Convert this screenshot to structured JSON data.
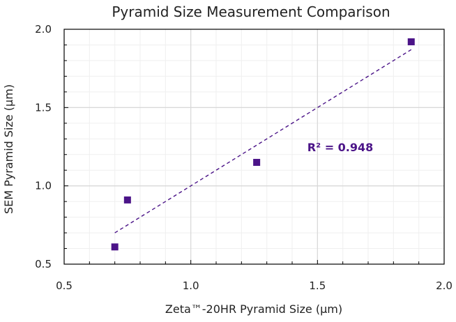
{
  "chart_data": {
    "type": "scatter",
    "title": "Pyramid Size Measurement Comparison",
    "xlabel": "Zeta™-20HR Pyramid Size (µm)",
    "ylabel": "SEM Pyramid Size (µm)",
    "xlim": [
      0.5,
      2.0
    ],
    "ylim": [
      0.5,
      2.0
    ],
    "x_ticks": [
      "0.5",
      "1.0",
      "1.5",
      "2.0"
    ],
    "y_ticks": [
      "0.5",
      "1.0",
      "1.5",
      "2.0"
    ],
    "grid": true,
    "series": [
      {
        "points": [
          {
            "x": 0.7,
            "y": 0.61
          },
          {
            "x": 0.75,
            "y": 0.91
          },
          {
            "x": 1.26,
            "y": 1.15
          },
          {
            "x": 1.87,
            "y": 1.92
          }
        ]
      }
    ],
    "trendline": {
      "type": "linear",
      "style": "dashed",
      "from": {
        "x": 0.7,
        "y": 0.7
      },
      "to": {
        "x": 1.87,
        "y": 1.87
      }
    },
    "annotation": "R² = 0.948",
    "annotation_position": {
      "x": 1.46,
      "y": 1.22
    },
    "colors": {
      "marker": "#4b1488",
      "trendline": "#4b1488",
      "grid_major": "#d9d9d9",
      "grid_minor": "#efefef",
      "axis": "#000000"
    }
  }
}
